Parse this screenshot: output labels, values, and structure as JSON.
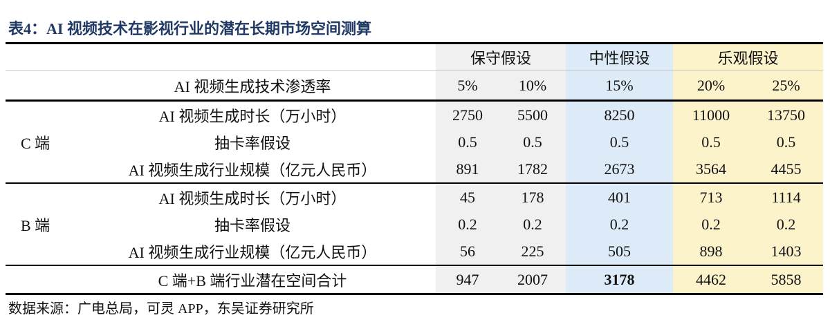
{
  "title": "表4：AI 视频技术在影视行业的潜在长期市场空间测算",
  "header": {
    "groups": [
      "保守假设",
      "中性假设",
      "乐观假设"
    ],
    "penetration_label": "AI 视频生成技术渗透率",
    "penetration": [
      "5%",
      "10%",
      "15%",
      "20%",
      "25%"
    ]
  },
  "colors": {
    "conservative": "#f0f0f0",
    "neutral": "#dcebf7",
    "optimistic": "#fdf3cb",
    "title": "#1f3864"
  },
  "sections": [
    {
      "group": "C 端",
      "rows": [
        {
          "label": "AI 视频生成时长（万小时）",
          "values": [
            "2750",
            "5500",
            "8250",
            "11000",
            "13750"
          ]
        },
        {
          "label": "抽卡率假设",
          "values": [
            "0.5",
            "0.5",
            "0.5",
            "0.5",
            "0.5"
          ]
        },
        {
          "label": "AI 视频生成行业规模（亿元人民币）",
          "values": [
            "891",
            "1782",
            "2673",
            "3564",
            "4455"
          ]
        }
      ]
    },
    {
      "group": "B 端",
      "rows": [
        {
          "label": "AI 视频生成时长（万小时）",
          "values": [
            "45",
            "178",
            "401",
            "713",
            "1114"
          ]
        },
        {
          "label": "抽卡率假设",
          "values": [
            "0.2",
            "0.2",
            "0.2",
            "0.2",
            "0.2"
          ]
        },
        {
          "label": "AI 视频生成行业规模（亿元人民币）",
          "values": [
            "56",
            "225",
            "505",
            "898",
            "1403"
          ]
        }
      ]
    }
  ],
  "total": {
    "label": "C 端+B 端行业潜在空间合计",
    "values": [
      "947",
      "2007",
      "3178",
      "4462",
      "5858"
    ]
  },
  "source": "数据来源：广电总局，可灵 APP，东吴证券研究所"
}
